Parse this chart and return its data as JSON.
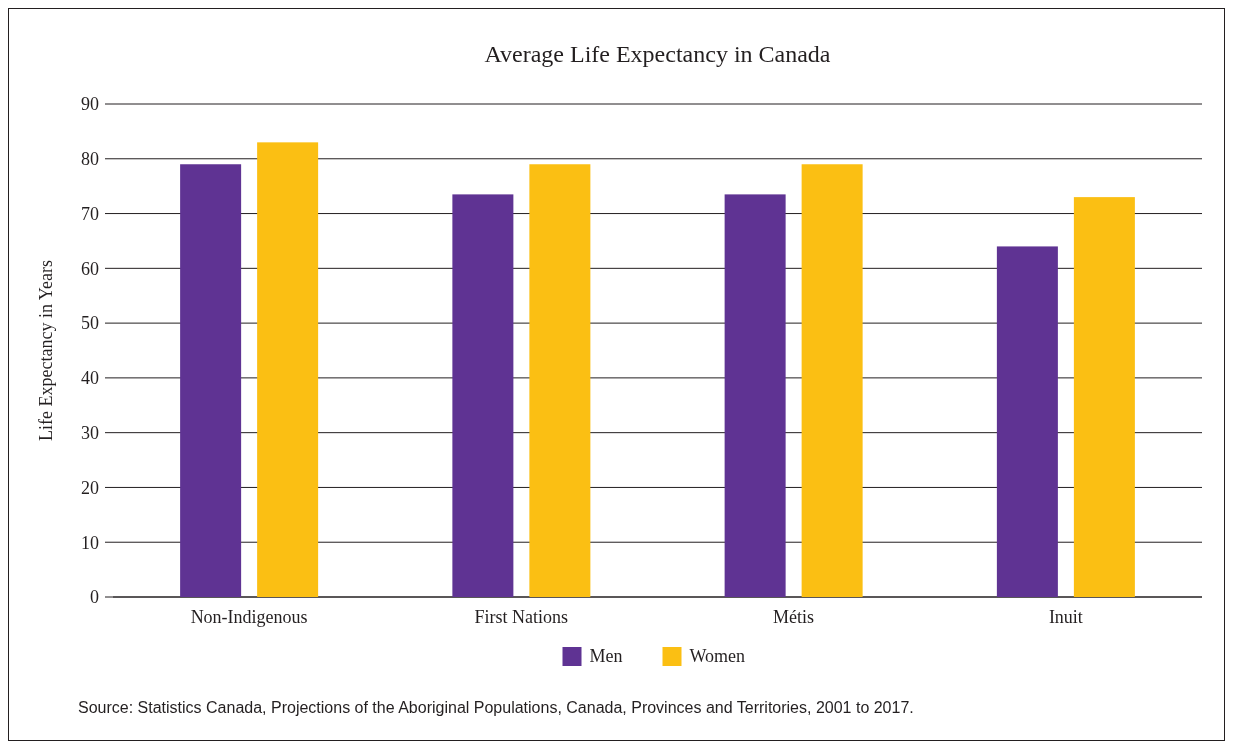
{
  "chart_data": {
    "type": "bar",
    "title": "Average Life Expectancy in Canada",
    "ylabel": "Life Expectancy in Years",
    "categories": [
      "Non-Indigenous",
      "First Nations",
      "Métis",
      "Inuit"
    ],
    "series": [
      {
        "name": "Men",
        "color": "#5f3393",
        "values": [
          79,
          73.5,
          73.5,
          64
        ]
      },
      {
        "name": "Women",
        "color": "#fbbf13",
        "values": [
          83,
          79,
          79,
          73
        ]
      }
    ],
    "ylim": [
      0,
      90
    ],
    "yticks": [
      0,
      10,
      20,
      30,
      40,
      50,
      60,
      70,
      80,
      90
    ],
    "grid": "y",
    "legend": "bottom",
    "annotations": [
      "Source: Statistics Canada, Projections of the Aboriginal Populations, Canada, Provinces and Territories, 2001 to 2017."
    ]
  }
}
